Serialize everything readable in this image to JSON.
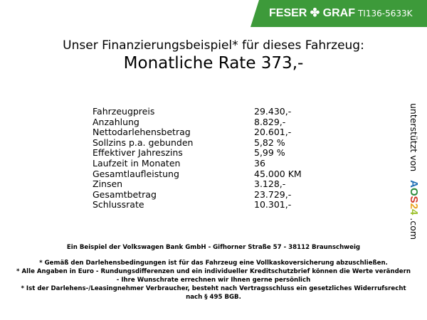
{
  "header": {
    "logo": "FESER ✤ GRAF",
    "code": "TI136-5633K",
    "brand_color": "#3d9a3a"
  },
  "title": "Unser Finanzierungsbeispiel* für dieses Fahrzeug:",
  "rate": "Monatliche Rate 373,-",
  "rows": [
    {
      "label": "Fahrzeugpreis",
      "value": "29.430,-"
    },
    {
      "label": "Anzahlung",
      "value": "8.829,-"
    },
    {
      "label": "Nettodarlehensbetrag",
      "value": "20.601,-"
    },
    {
      "label": "Sollzins p.a. gebunden",
      "value": "5,82 %"
    },
    {
      "label": "Effektiver Jahreszins",
      "value": "5,99 %"
    },
    {
      "label": "Laufzeit in Monaten",
      "value": "36"
    },
    {
      "label": "Gesamtlaufleistung",
      "value": "45.000 KM"
    },
    {
      "label": "Zinsen",
      "value": "3.128,-"
    },
    {
      "label": "Gesamtbetrag",
      "value": "23.729,-"
    },
    {
      "label": "Schlussrate",
      "value": "10.301,-"
    }
  ],
  "side": {
    "text": "unterstützt von",
    "aos": [
      "A",
      "O",
      "S",
      "2",
      "4"
    ],
    "suffix": ".com"
  },
  "bank": "Ein Beispiel der Volkswagen Bank GmbH - Gifhorner Straße 57 - 38112 Braunschweig",
  "notes": [
    "* Gemäß den Darlehensbedingungen ist für das Fahrzeug eine Vollkaskoversicherung abzuschließen.",
    "* Alle Angaben in Euro - Rundungsdifferenzen und ein individueller Kreditschutzbrief können die Werte verändern",
    "- Ihre Wunschrate errechnen wir Ihnen gerne persönlich",
    "* Ist der Darlehens-/Leasingnehmer Verbraucher, besteht nach Vertragsschluss ein gesetzliches Widerrufsrecht",
    "nach § 495 BGB."
  ]
}
